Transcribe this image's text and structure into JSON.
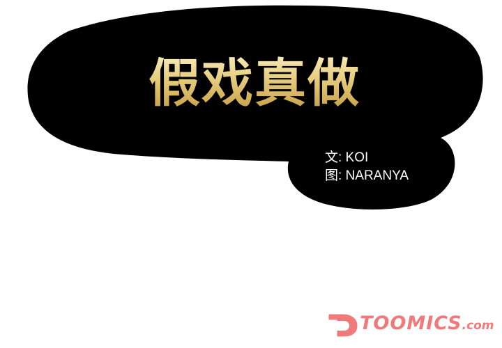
{
  "title": "假戏真做",
  "credits": {
    "writer": "文: KOI",
    "artist": "图: NARANYA"
  },
  "watermark": {
    "brand": "TOOMICS",
    "suffix": ".com",
    "icon": "toomics-mark-icon"
  },
  "colors": {
    "bubble": "#000000",
    "title_gold": "#e2c576",
    "credits_text": "#ffffff",
    "watermark": "#f07a7a"
  }
}
